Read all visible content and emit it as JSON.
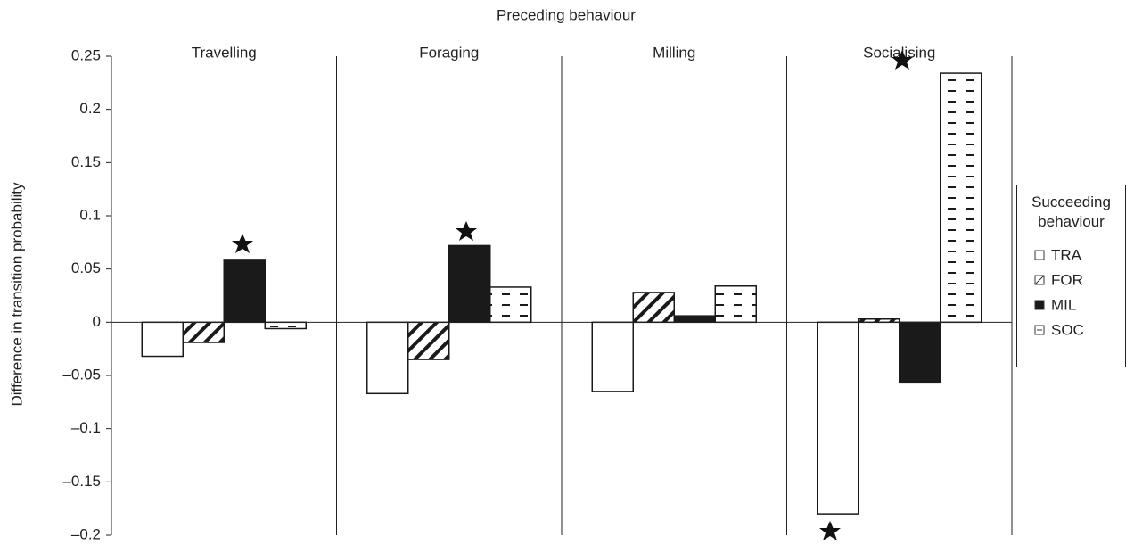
{
  "chart_data": {
    "type": "bar",
    "title": "Preceding behaviour",
    "y_label": "Difference in transition probability",
    "categories": [
      "Travelling",
      "Foraging",
      "Milling",
      "Socialising"
    ],
    "legend_title": "Succeeding behaviour",
    "series": [
      {
        "name": "TRA",
        "color": "#ffffff",
        "pattern": "none",
        "values": [
          -0.032,
          -0.067,
          -0.065,
          -0.18
        ]
      },
      {
        "name": "FOR",
        "color": "#ffffff",
        "pattern": "diagonal",
        "values": [
          -0.019,
          -0.035,
          0.028,
          0.003
        ]
      },
      {
        "name": "MIL",
        "color": "#1a1a1a",
        "pattern": "none",
        "values": [
          0.059,
          0.072,
          0.006,
          -0.057
        ]
      },
      {
        "name": "SOC",
        "color": "#ffffff",
        "pattern": "dashes",
        "values": [
          -0.006,
          0.033,
          0.034,
          0.234
        ]
      }
    ],
    "ylim": [
      -0.2,
      0.25
    ],
    "yticks": [
      {
        "value": -0.2,
        "label": "–0.2"
      },
      {
        "value": -0.15,
        "label": "–0.15"
      },
      {
        "value": -0.1,
        "label": "–0.1"
      },
      {
        "value": -0.05,
        "label": "–0.05"
      },
      0,
      0.05,
      0.1,
      0.15,
      0.2,
      0.25
    ]
  }
}
